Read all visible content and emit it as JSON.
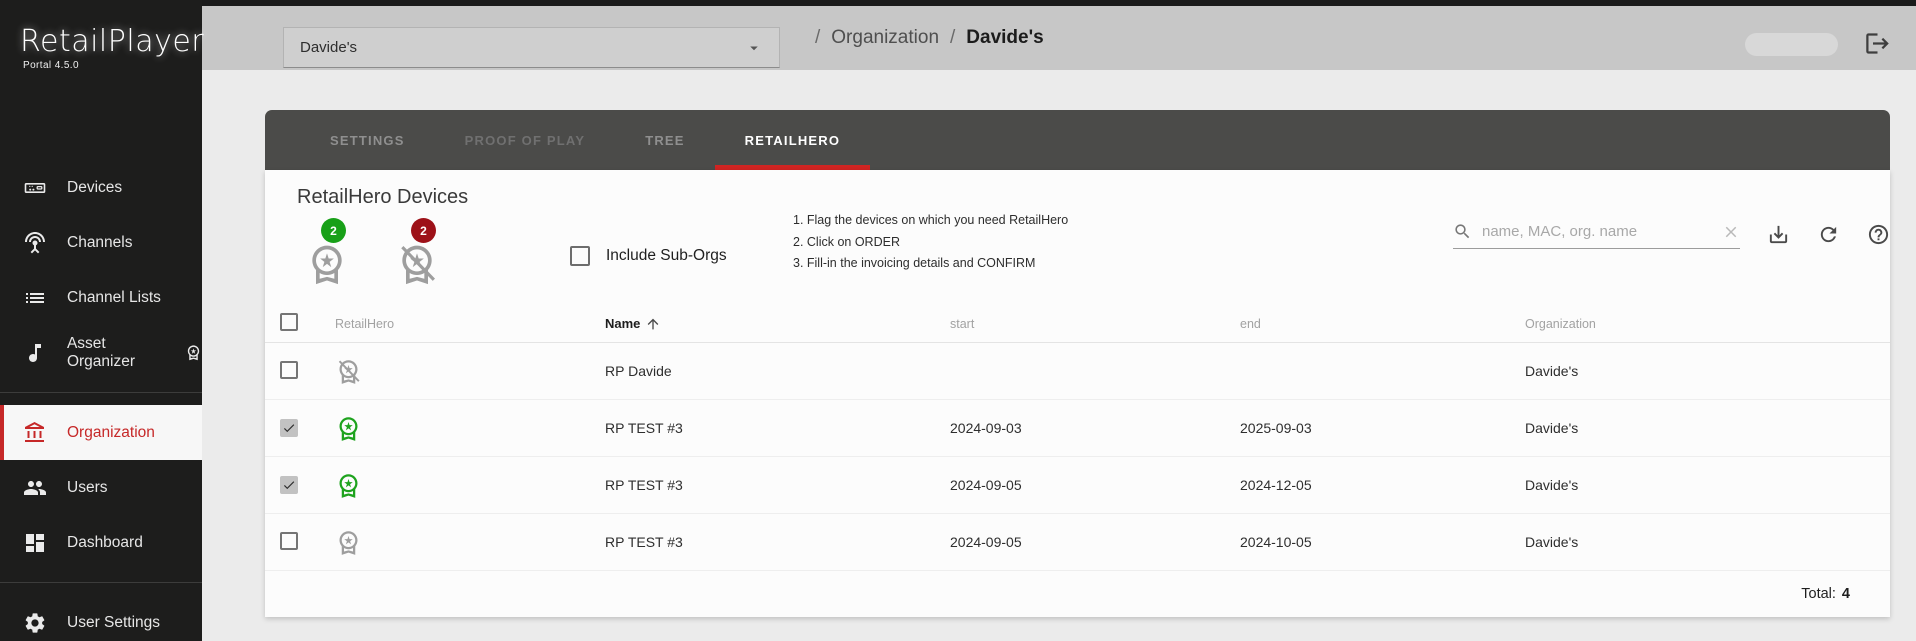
{
  "app": {
    "name": "RetailPlayer",
    "version": "Portal 4.5.0"
  },
  "topbar": {
    "org_selector_value": "Davide's",
    "breadcrumb": {
      "sep": "/",
      "parent": "Organization",
      "current": "Davide's"
    }
  },
  "sidebar": {
    "items": [
      {
        "label": "Devices",
        "icon": "devices-icon"
      },
      {
        "label": "Channels",
        "icon": "channels-icon"
      },
      {
        "label": "Channel Lists",
        "icon": "channel-lists-icon"
      },
      {
        "label": "Asset Organizer",
        "icon": "music-note-icon",
        "suffix_icon": "award-icon"
      },
      {
        "label": "Organization",
        "icon": "organization-icon",
        "active": true,
        "divider_before": true
      },
      {
        "label": "Users",
        "icon": "users-icon"
      },
      {
        "label": "Dashboard",
        "icon": "dashboard-icon"
      },
      {
        "label": "User Settings",
        "icon": "gear-icon",
        "divider_before": true
      }
    ]
  },
  "tabs": [
    {
      "label": "SETTINGS"
    },
    {
      "label": "PROOF OF PLAY",
      "muted": true
    },
    {
      "label": "TREE"
    },
    {
      "label": "RETAILHERO",
      "active": true
    }
  ],
  "panel": {
    "title": "RetailHero Devices",
    "filters": [
      {
        "name": "retailhero-enabled-filter",
        "icon": "award-icon",
        "count": "2",
        "count_color": "#18a018"
      },
      {
        "name": "retailhero-disabled-filter",
        "icon": "award-slashed-icon",
        "count": "2",
        "count_color": "#9d1118"
      }
    ],
    "include_suborgs": {
      "label": "Include Sub-Orgs",
      "checked": false
    },
    "instructions": [
      "1. Flag the devices on which you need RetailHero",
      "2. Click on ORDER",
      "3. Fill-in the invoicing details and CONFIRM"
    ],
    "search": {
      "placeholder": "name, MAC, org. name"
    }
  },
  "table": {
    "headers": {
      "retailhero": "RetailHero",
      "name": "Name",
      "start": "start",
      "end": "end",
      "organization": "Organization"
    },
    "sort": {
      "column": "Name",
      "direction": "asc"
    },
    "rows": [
      {
        "checked": false,
        "status": "disabled",
        "name": "RP Davide",
        "start": "",
        "end": "",
        "organization": "Davide's"
      },
      {
        "checked": true,
        "status": "active",
        "name": "RP TEST #3",
        "start": "2024-09-03",
        "end": "2025-09-03",
        "organization": "Davide's"
      },
      {
        "checked": true,
        "status": "active",
        "name": "RP TEST #3",
        "start": "2024-09-05",
        "end": "2024-12-05",
        "organization": "Davide's"
      },
      {
        "checked": false,
        "status": "inactive",
        "name": "RP TEST #3",
        "start": "2024-09-05",
        "end": "2024-10-05",
        "organization": "Davide's"
      }
    ],
    "total_label": "Total:",
    "total_value": "4"
  },
  "colors": {
    "sidebar_active_red": "#c62828",
    "tab_underline_red": "#d02422",
    "badge_green": "#1ea31e",
    "badge_gray": "#9e9e9e",
    "count_green": "#18a018",
    "count_red": "#9d1118"
  }
}
